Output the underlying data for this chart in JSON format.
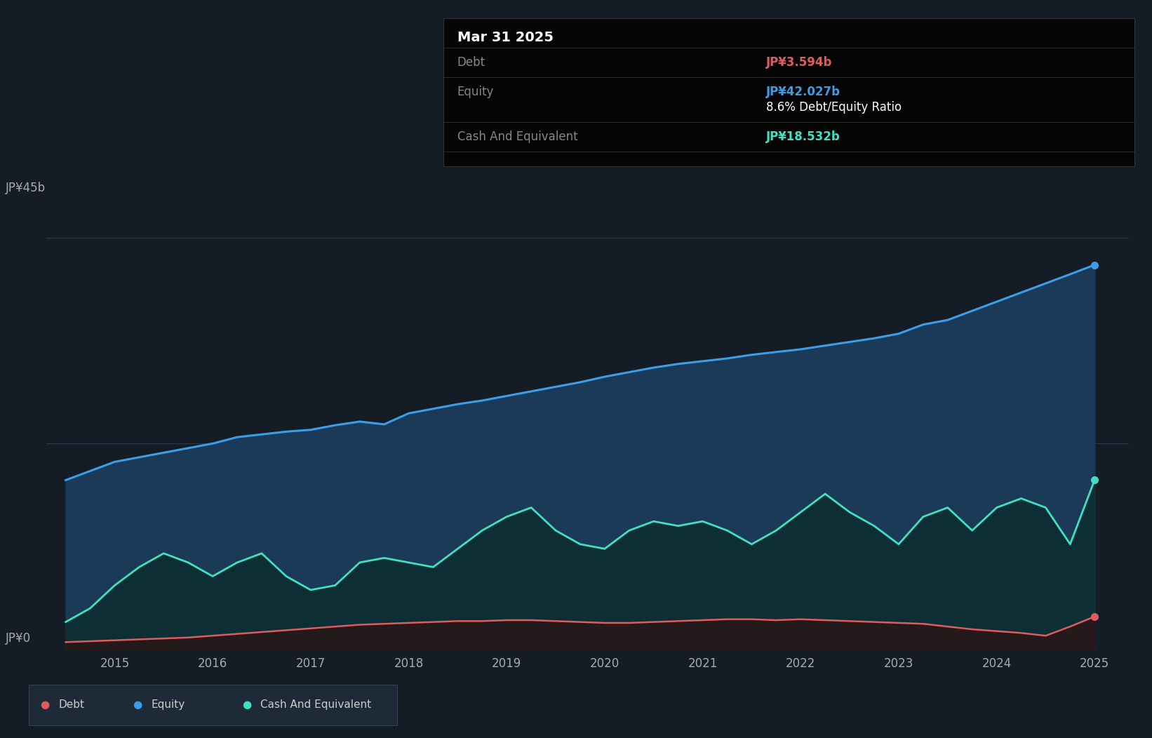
{
  "bg_color": "#141c26",
  "equity_color": "#3b9ee8",
  "debt_color": "#e05c5c",
  "cash_color": "#40e0c0",
  "equity_fill": "#1b3a58",
  "cash_fill": "#0d2e35",
  "debt_fill": "#2a1515",
  "grid_color": "#2a3a4a",
  "tooltip_bg": "#050505",
  "tooltip_border": "#333333",
  "tooltip_title": "Mar 31 2025",
  "tooltip_debt_label": "Debt",
  "tooltip_debt_value": "JP¥3.594b",
  "tooltip_equity_label": "Equity",
  "tooltip_equity_value": "JP¥42.027b",
  "tooltip_ratio": "8.6% Debt/Equity Ratio",
  "tooltip_cash_label": "Cash And Equivalent",
  "tooltip_cash_value": "JP¥18.532b",
  "ylabel_top": "JP¥45b",
  "ylabel_bottom": "JP¥0",
  "legend_labels": [
    "Debt",
    "Equity",
    "Cash And Equivalent"
  ],
  "years": [
    2014.5,
    2014.75,
    2015.0,
    2015.25,
    2015.5,
    2015.75,
    2016.0,
    2016.25,
    2016.5,
    2016.75,
    2017.0,
    2017.25,
    2017.5,
    2017.75,
    2018.0,
    2018.25,
    2018.5,
    2018.75,
    2019.0,
    2019.25,
    2019.5,
    2019.75,
    2020.0,
    2020.25,
    2020.5,
    2020.75,
    2021.0,
    2021.25,
    2021.5,
    2021.75,
    2022.0,
    2022.25,
    2022.5,
    2022.75,
    2023.0,
    2023.25,
    2023.5,
    2023.75,
    2024.0,
    2024.25,
    2024.5,
    2024.75,
    2025.0
  ],
  "equity": [
    18.5,
    19.5,
    20.5,
    21.0,
    21.5,
    22.0,
    22.5,
    23.2,
    23.5,
    23.8,
    24.0,
    24.5,
    24.9,
    24.6,
    25.8,
    26.3,
    26.8,
    27.2,
    27.7,
    28.2,
    28.7,
    29.2,
    29.8,
    30.3,
    30.8,
    31.2,
    31.5,
    31.8,
    32.2,
    32.5,
    32.8,
    33.2,
    33.6,
    34.0,
    34.5,
    35.5,
    36.0,
    37.0,
    38.0,
    39.0,
    40.0,
    41.0,
    42.027
  ],
  "debt": [
    0.8,
    0.9,
    1.0,
    1.1,
    1.2,
    1.3,
    1.5,
    1.7,
    1.9,
    2.1,
    2.3,
    2.5,
    2.7,
    2.8,
    2.9,
    3.0,
    3.1,
    3.1,
    3.2,
    3.2,
    3.1,
    3.0,
    2.9,
    2.9,
    3.0,
    3.1,
    3.2,
    3.3,
    3.3,
    3.2,
    3.3,
    3.2,
    3.1,
    3.0,
    2.9,
    2.8,
    2.5,
    2.2,
    2.0,
    1.8,
    1.5,
    2.5,
    3.594
  ],
  "cash": [
    3.0,
    4.5,
    7.0,
    9.0,
    10.5,
    9.5,
    8.0,
    9.5,
    10.5,
    8.0,
    6.5,
    7.0,
    9.5,
    10.0,
    9.5,
    9.0,
    11.0,
    13.0,
    14.5,
    15.5,
    13.0,
    11.5,
    11.0,
    13.0,
    14.0,
    13.5,
    14.0,
    13.0,
    11.5,
    13.0,
    15.0,
    17.0,
    15.0,
    13.5,
    11.5,
    14.5,
    15.5,
    13.0,
    15.5,
    16.5,
    15.5,
    11.5,
    18.532
  ],
  "ylim": [
    0,
    50
  ],
  "xlim_start": 2014.3,
  "xlim_end": 2025.35,
  "xticks": [
    2015,
    2016,
    2017,
    2018,
    2019,
    2020,
    2021,
    2022,
    2023,
    2024,
    2025
  ]
}
